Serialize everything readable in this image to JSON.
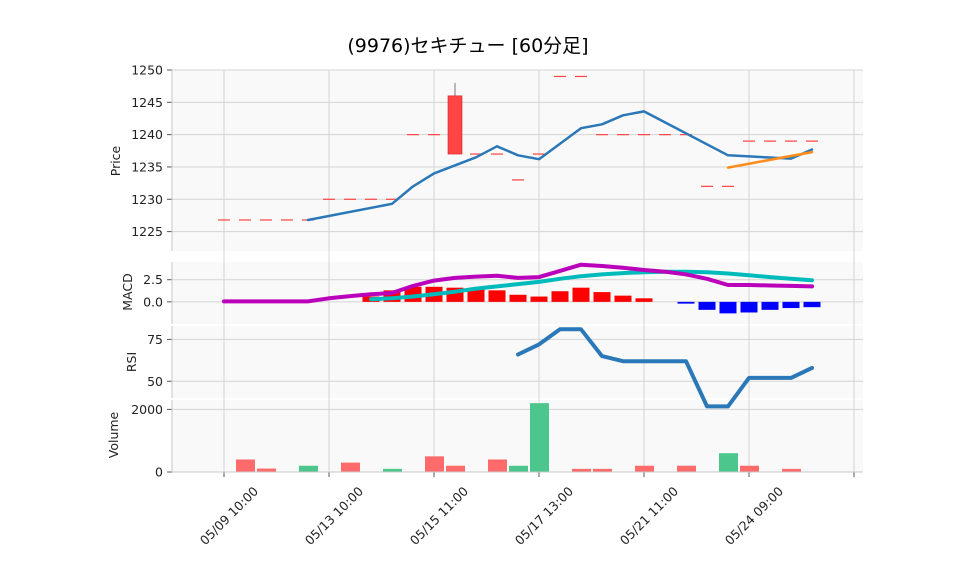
{
  "chart_data": {
    "title": "(9976)セキチュー  [60分足]",
    "x_tick_labels": [
      "05/09 10:00",
      "05/13 10:00",
      "05/15 11:00",
      "05/17 13:00",
      "05/21 11:00",
      "05/24 09:00"
    ],
    "colors": {
      "up": "#ff4444",
      "down": "#44cc88",
      "macd_up": "#ff0000",
      "macd_down": "#0000ff",
      "ma": "#2a78b8",
      "trend": "#ff8c1a",
      "macd": "#bb00bb",
      "signal": "#00bbbb",
      "rsi": "#2a78b8",
      "grid": "#d4d4d4"
    },
    "price": {
      "type": "candlestick",
      "ylabel": "Price",
      "ylim": [
        1222,
        1250
      ],
      "yticks": [
        1225,
        1230,
        1235,
        1240,
        1245,
        1250
      ],
      "dash_levels": [
        {
          "from": 0,
          "to": 4,
          "y": 1226.8
        },
        {
          "from": 5,
          "to": 8,
          "y": 1230
        },
        {
          "from": 9,
          "to": 10,
          "y": 1240
        },
        {
          "from": 12,
          "to": 13,
          "y": 1237
        },
        {
          "from": 14,
          "to": 14,
          "y": 1233
        },
        {
          "from": 15,
          "to": 15,
          "y": 1237
        },
        {
          "from": 16,
          "to": 17,
          "y": 1249
        },
        {
          "from": 18,
          "to": 22,
          "y": 1240
        },
        {
          "from": 23,
          "to": 24,
          "y": 1232
        },
        {
          "from": 25,
          "to": 28,
          "y": 1239
        }
      ],
      "candles": [
        {
          "i": 11,
          "open": 1237,
          "close": 1246,
          "high": 1248,
          "low": 1237
        }
      ],
      "ma_line": [
        [
          4,
          1226.8
        ],
        [
          8,
          1229.3
        ],
        [
          9,
          1232
        ],
        [
          10,
          1234
        ],
        [
          12,
          1236.5
        ],
        [
          13,
          1238.2
        ],
        [
          14,
          1236.8
        ],
        [
          15,
          1236.2
        ],
        [
          17,
          1241
        ],
        [
          18,
          1241.6
        ],
        [
          19,
          1243
        ],
        [
          20,
          1243.6
        ],
        [
          24,
          1236.8
        ],
        [
          27,
          1236.3
        ],
        [
          28,
          1237.7
        ]
      ],
      "trend_line": [
        [
          24,
          1234.9
        ],
        [
          28,
          1237.3
        ]
      ]
    },
    "macd": {
      "ylabel": "MACD",
      "ylim": [
        -2.5,
        4.5
      ],
      "yticks": [
        0.0,
        2.5
      ],
      "hist": [
        [
          7,
          0.6
        ],
        [
          8,
          1.3
        ],
        [
          9,
          1.7
        ],
        [
          10,
          1.7
        ],
        [
          11,
          1.6
        ],
        [
          12,
          1.5
        ],
        [
          13,
          1.3
        ],
        [
          14,
          0.8
        ],
        [
          15,
          0.6
        ],
        [
          16,
          1.2
        ],
        [
          17,
          1.6
        ],
        [
          18,
          1.1
        ],
        [
          19,
          0.7
        ],
        [
          20,
          0.4
        ],
        [
          22,
          -0.2
        ],
        [
          23,
          -0.9
        ],
        [
          24,
          -1.3
        ],
        [
          25,
          -1.2
        ],
        [
          26,
          -0.9
        ],
        [
          27,
          -0.7
        ],
        [
          28,
          -0.6
        ]
      ],
      "macd_line": [
        [
          0,
          0.05
        ],
        [
          4,
          0.05
        ],
        [
          5,
          0.4
        ],
        [
          6,
          0.65
        ],
        [
          7,
          0.85
        ],
        [
          8,
          1.0
        ],
        [
          9,
          1.8
        ],
        [
          10,
          2.4
        ],
        [
          11,
          2.7
        ],
        [
          12,
          2.85
        ],
        [
          13,
          2.95
        ],
        [
          14,
          2.7
        ],
        [
          15,
          2.8
        ],
        [
          16,
          3.5
        ],
        [
          17,
          4.2
        ],
        [
          18,
          4.05
        ],
        [
          19,
          3.85
        ],
        [
          20,
          3.6
        ],
        [
          21,
          3.4
        ],
        [
          22,
          3.1
        ],
        [
          23,
          2.6
        ],
        [
          24,
          1.9
        ],
        [
          25,
          1.9
        ],
        [
          26,
          1.85
        ],
        [
          27,
          1.8
        ],
        [
          28,
          1.75
        ]
      ],
      "signal_line": [
        [
          7,
          0.3
        ],
        [
          8,
          0.4
        ],
        [
          9,
          0.6
        ],
        [
          10,
          0.85
        ],
        [
          11,
          1.15
        ],
        [
          12,
          1.5
        ],
        [
          13,
          1.75
        ],
        [
          14,
          2.0
        ],
        [
          15,
          2.25
        ],
        [
          16,
          2.6
        ],
        [
          17,
          2.9
        ],
        [
          18,
          3.1
        ],
        [
          19,
          3.25
        ],
        [
          20,
          3.35
        ],
        [
          21,
          3.4
        ],
        [
          22,
          3.4
        ],
        [
          23,
          3.35
        ],
        [
          24,
          3.2
        ],
        [
          25,
          3.0
        ],
        [
          26,
          2.8
        ],
        [
          27,
          2.6
        ],
        [
          28,
          2.45
        ]
      ]
    },
    "rsi": {
      "ylabel": "RSI",
      "ylim": [
        40,
        83
      ],
      "yticks": [
        50,
        75
      ],
      "line": [
        [
          14,
          66
        ],
        [
          15,
          72
        ],
        [
          16,
          81
        ],
        [
          17,
          81
        ],
        [
          18,
          65
        ],
        [
          19,
          62
        ],
        [
          20,
          62
        ],
        [
          21,
          62
        ],
        [
          22,
          62
        ],
        [
          23,
          35
        ],
        [
          24,
          35
        ],
        [
          25,
          52
        ],
        [
          26,
          52
        ],
        [
          27,
          52
        ],
        [
          28,
          58
        ]
      ]
    },
    "volume": {
      "ylabel": "Volume",
      "ylim": [
        0,
        2300
      ],
      "yticks": [
        0,
        2000
      ],
      "bars": [
        {
          "i": 1,
          "v": 400,
          "dir": "up"
        },
        {
          "i": 2,
          "v": 110,
          "dir": "up"
        },
        {
          "i": 4,
          "v": 200,
          "dir": "down"
        },
        {
          "i": 6,
          "v": 300,
          "dir": "up"
        },
        {
          "i": 8,
          "v": 100,
          "dir": "down"
        },
        {
          "i": 10,
          "v": 500,
          "dir": "up"
        },
        {
          "i": 11,
          "v": 200,
          "dir": "up"
        },
        {
          "i": 13,
          "v": 400,
          "dir": "up"
        },
        {
          "i": 14,
          "v": 200,
          "dir": "down"
        },
        {
          "i": 15,
          "v": 2200,
          "dir": "down"
        },
        {
          "i": 17,
          "v": 100,
          "dir": "up"
        },
        {
          "i": 18,
          "v": 100,
          "dir": "up"
        },
        {
          "i": 20,
          "v": 200,
          "dir": "up"
        },
        {
          "i": 22,
          "v": 200,
          "dir": "up"
        },
        {
          "i": 24,
          "v": 600,
          "dir": "down"
        },
        {
          "i": 25,
          "v": 200,
          "dir": "up"
        },
        {
          "i": 27,
          "v": 100,
          "dir": "up"
        }
      ]
    }
  }
}
